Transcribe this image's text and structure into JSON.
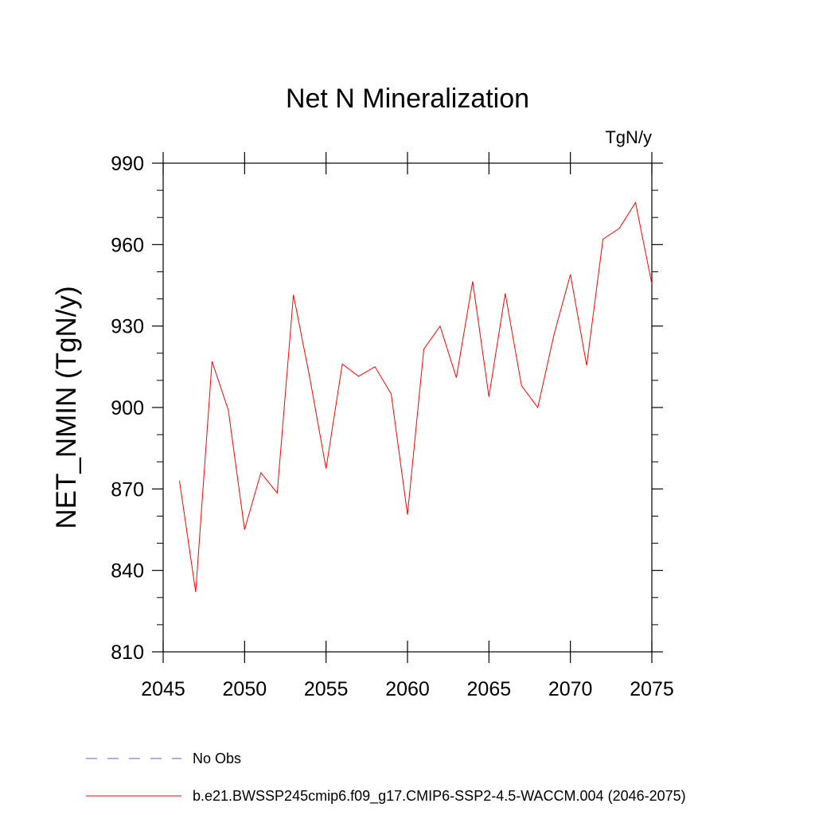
{
  "chart_data": {
    "type": "line",
    "title": "Net N Mineralization",
    "units": "TgN/y",
    "xlabel": "",
    "ylabel": "NET_NMIN  (TgN/y)",
    "xlim": [
      2045,
      2075
    ],
    "ylim": [
      810,
      990
    ],
    "xticks": [
      2045,
      2050,
      2055,
      2060,
      2065,
      2070,
      2075
    ],
    "yticks": [
      810,
      840,
      870,
      900,
      930,
      960,
      990
    ],
    "grid": false,
    "legend_position": "bottom",
    "series": [
      {
        "name": "b.e21.BWSSP245cmip6.f09_g17.CMIP6-SSP2-4.5-WACCM.004 (2046-2075)",
        "color": "#ff0000",
        "style": "solid",
        "x": [
          2046,
          2047,
          2048,
          2049,
          2050,
          2051,
          2052,
          2053,
          2054,
          2055,
          2056,
          2057,
          2058,
          2059,
          2060,
          2061,
          2062,
          2063,
          2064,
          2065,
          2066,
          2067,
          2068,
          2069,
          2070,
          2071,
          2072,
          2073,
          2074,
          2075
        ],
        "values": [
          873,
          832,
          917,
          899,
          855,
          876,
          868.5,
          941.5,
          911,
          877.5,
          916,
          911.5,
          915,
          905,
          860.5,
          921.5,
          930,
          911,
          946.5,
          904,
          942,
          908,
          900,
          927,
          949,
          915.5,
          962,
          966,
          975.5,
          945.5
        ]
      }
    ],
    "legend": [
      {
        "label": "No Obs",
        "color": "#6a5acd",
        "style": "dashed"
      },
      {
        "label": "b.e21.BWSSP245cmip6.f09_g17.CMIP6-SSP2-4.5-WACCM.004 (2046-2075)",
        "color": "#ff0000",
        "style": "solid"
      }
    ]
  }
}
